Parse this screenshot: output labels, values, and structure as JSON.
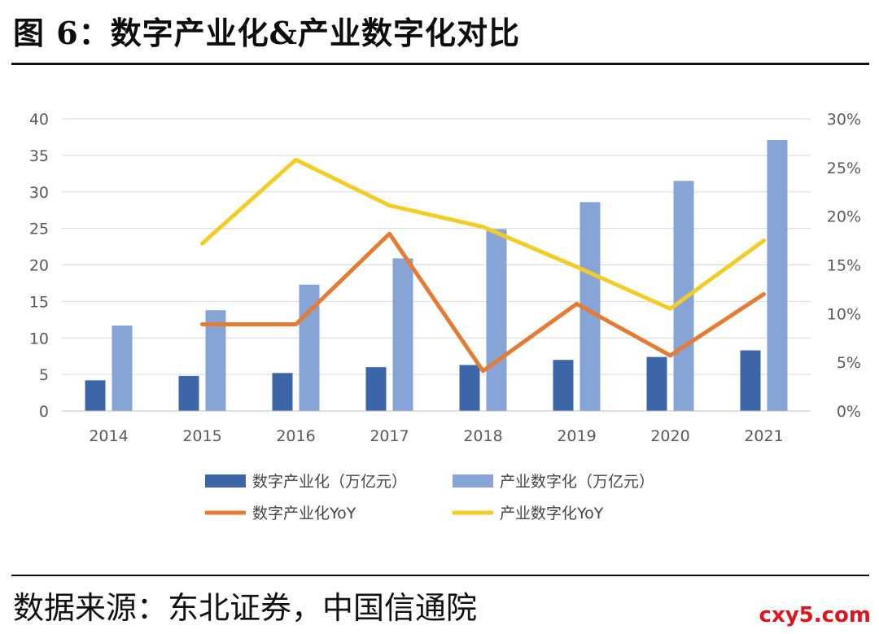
{
  "title": "图 6：数字产业化&产业数字化对比",
  "source": "数据来源：东北证券，中国信通院",
  "watermark": "cxy5.com",
  "colors": {
    "bar1": "#3c66a8",
    "bar2": "#86a5d6",
    "line1": "#e57c35",
    "line2": "#f3cd27",
    "grid": "#d9d9d9"
  },
  "chart_data": {
    "type": "bar+line",
    "categories": [
      "2014",
      "2015",
      "2016",
      "2017",
      "2018",
      "2019",
      "2020",
      "2021"
    ],
    "y_left": {
      "lim": [
        0,
        40
      ],
      "ticks": [
        "0",
        "5",
        "10",
        "15",
        "20",
        "25",
        "30",
        "35",
        "40"
      ]
    },
    "y_right": {
      "lim": [
        0,
        30
      ],
      "ticks": [
        "0%",
        "5%",
        "10%",
        "15%",
        "20%",
        "25%",
        "30%"
      ]
    },
    "grid": true,
    "legend_position": "bottom",
    "series": [
      {
        "name": "数字产业化（万亿元）",
        "type": "bar",
        "axis": "left",
        "color_key": "bar1",
        "values": [
          4.2,
          4.8,
          5.2,
          6.0,
          6.3,
          7.0,
          7.4,
          8.3
        ]
      },
      {
        "name": "产业数字化（万亿元）",
        "type": "bar",
        "axis": "left",
        "color_key": "bar2",
        "values": [
          11.7,
          13.8,
          17.3,
          20.9,
          24.9,
          28.6,
          31.5,
          37.1
        ]
      },
      {
        "name": "数字产业化YoY",
        "type": "line",
        "axis": "right",
        "color_key": "line1",
        "values": [
          null,
          8.9,
          8.9,
          18.2,
          4.1,
          11.0,
          5.7,
          12.0
        ]
      },
      {
        "name": "产业数字化YoY",
        "type": "line",
        "axis": "right",
        "color_key": "line2",
        "values": [
          null,
          17.2,
          25.8,
          21.1,
          18.9,
          14.8,
          10.5,
          17.5
        ]
      }
    ]
  }
}
